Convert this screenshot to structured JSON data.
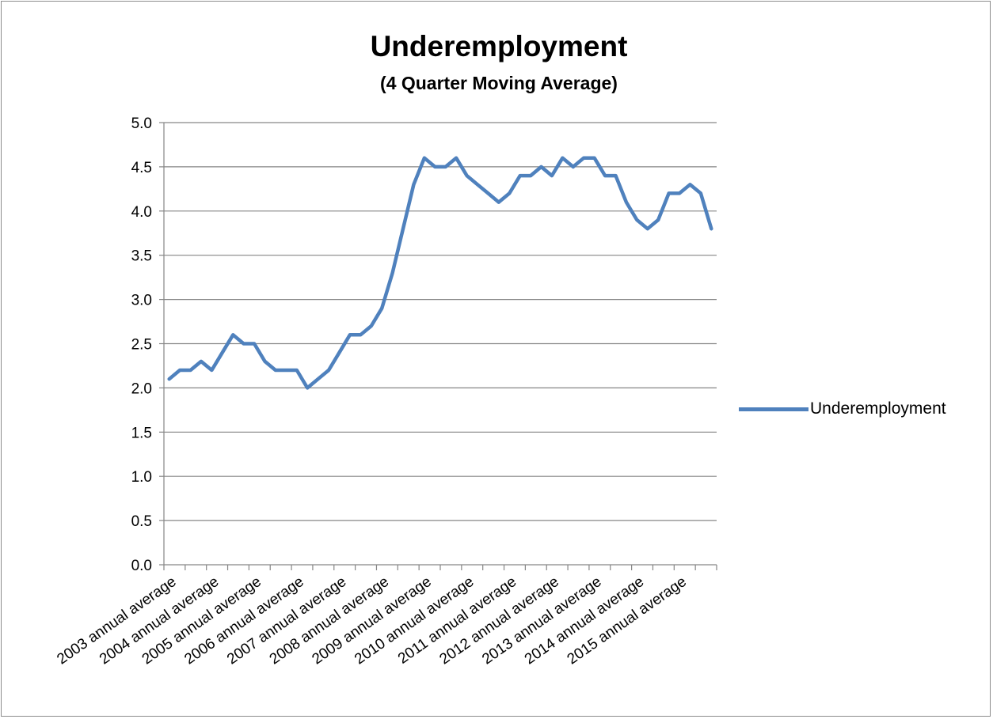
{
  "chart_data": {
    "type": "line",
    "title": "Underemployment",
    "subtitle": "(4 Quarter Moving Average)",
    "xlabel": "",
    "ylabel": "",
    "ylim": [
      0,
      5
    ],
    "yticks": [
      "0.0",
      "0.5",
      "1.0",
      "1.5",
      "2.0",
      "2.5",
      "3.0",
      "3.5",
      "4.0",
      "4.5",
      "5.0"
    ],
    "grid": true,
    "legend_position": "right",
    "categories": [
      "2003 annual average",
      "",
      "",
      "",
      "2004 annual average",
      "",
      "",
      "",
      "2005 annual average",
      "",
      "",
      "",
      "2006 annual average",
      "",
      "",
      "",
      "2007 annual average",
      "",
      "",
      "",
      "2008 annual average",
      "",
      "",
      "",
      "2009 annual average",
      "",
      "",
      "",
      "2010 annual average",
      "",
      "",
      "",
      "2011 annual average",
      "",
      "",
      "",
      "2012 annual average",
      "",
      "",
      "",
      "2013 annual average",
      "",
      "",
      "",
      "2014 annual average",
      "",
      "",
      "",
      "2015 annual average",
      "",
      "",
      ""
    ],
    "series": [
      {
        "name": "Underemployment",
        "color": "#4f81bd",
        "values": [
          2.1,
          2.2,
          2.2,
          2.3,
          2.2,
          2.4,
          2.6,
          2.5,
          2.5,
          2.3,
          2.2,
          2.2,
          2.2,
          2.0,
          2.1,
          2.2,
          2.4,
          2.6,
          2.6,
          2.7,
          2.9,
          3.3,
          3.8,
          4.3,
          4.6,
          4.5,
          4.5,
          4.6,
          4.4,
          4.3,
          4.2,
          4.1,
          4.2,
          4.4,
          4.4,
          4.5,
          4.4,
          4.6,
          4.5,
          4.6,
          4.6,
          4.4,
          4.4,
          4.1,
          3.9,
          3.8,
          3.9,
          4.2,
          4.2,
          4.3,
          4.2,
          3.8
        ]
      }
    ]
  }
}
